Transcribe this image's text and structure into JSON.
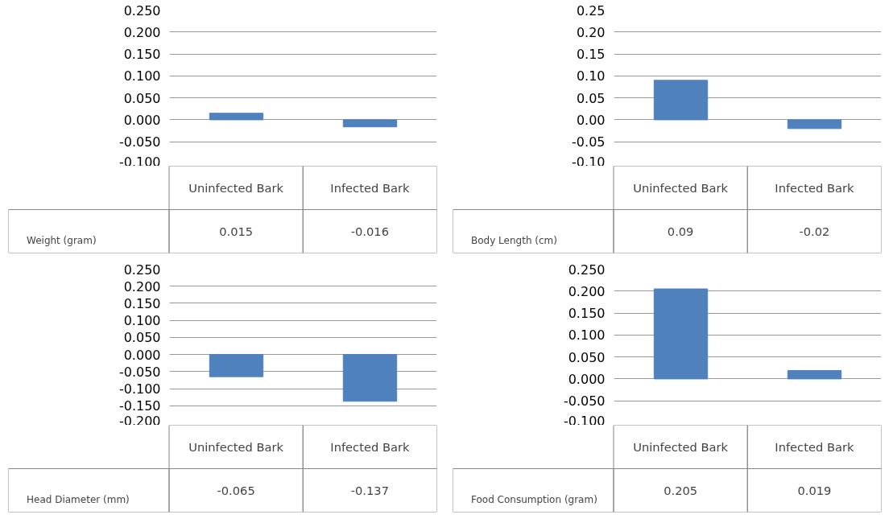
{
  "chart_data": [
    {
      "type": "bar",
      "categories": [
        "Uninfected Bark",
        "Infected Bark"
      ],
      "series": [
        {
          "name": "Weight (gram)",
          "color": "#4f81bd",
          "values": [
            0.015,
            -0.016
          ]
        }
      ],
      "ylim": [
        -0.1,
        0.25
      ],
      "yticks": [
        {
          "value": -0.1,
          "label": "-0.100"
        },
        {
          "value": -0.05,
          "label": "-0.050"
        },
        {
          "value": 0,
          "label": "0.000"
        },
        {
          "value": 0.05,
          "label": "0.050"
        },
        {
          "value": 0.1,
          "label": "0.100"
        },
        {
          "value": 0.15,
          "label": "0.150"
        },
        {
          "value": 0.2,
          "label": "0.200"
        },
        {
          "value": 0.25,
          "label": "0.250"
        }
      ],
      "grid": "y",
      "legend": "bottom left",
      "data_labels": true
    },
    {
      "type": "bar",
      "categories": [
        "Uninfected Bark",
        "Infected Bark"
      ],
      "series": [
        {
          "name": "Body Length (cm)",
          "color": "#4f81bd",
          "values": [
            0.09,
            -0.02
          ]
        }
      ],
      "ylim": [
        -0.1,
        0.25
      ],
      "yticks": [
        {
          "value": -0.1,
          "label": "-0.10"
        },
        {
          "value": -0.05,
          "label": "-0.05"
        },
        {
          "value": 0,
          "label": "0.00"
        },
        {
          "value": 0.05,
          "label": "0.05"
        },
        {
          "value": 0.1,
          "label": "0.10"
        },
        {
          "value": 0.15,
          "label": "0.15"
        },
        {
          "value": 0.2,
          "label": "0.20"
        },
        {
          "value": 0.25,
          "label": "0.25"
        }
      ],
      "grid": "y",
      "legend": "bottom left",
      "data_labels": true
    },
    {
      "type": "bar",
      "categories": [
        "Uninfected Bark",
        "Infected Bark"
      ],
      "series": [
        {
          "name": "Head Diameter (mm)",
          "color": "#4f81bd",
          "values": [
            -0.065,
            -0.137
          ]
        }
      ],
      "ylim": [
        -0.2,
        0.25
      ],
      "yticks": [
        {
          "value": -0.2,
          "label": "-0.200"
        },
        {
          "value": -0.15,
          "label": "-0.150"
        },
        {
          "value": -0.1,
          "label": "-0.100"
        },
        {
          "value": -0.05,
          "label": "-0.050"
        },
        {
          "value": 0,
          "label": "0.000"
        },
        {
          "value": 0.05,
          "label": "0.050"
        },
        {
          "value": 0.1,
          "label": "0.100"
        },
        {
          "value": 0.15,
          "label": "0.150"
        },
        {
          "value": 0.2,
          "label": "0.200"
        },
        {
          "value": 0.25,
          "label": "0.250"
        }
      ],
      "grid": "y",
      "legend": "bottom left",
      "data_labels": true
    },
    {
      "type": "bar",
      "categories": [
        "Uninfected Bark",
        "Infected Bark"
      ],
      "series": [
        {
          "name": "Food Consumption (gram)",
          "color": "#4f81bd",
          "values": [
            0.205,
            0.019
          ]
        }
      ],
      "ylim": [
        -0.1,
        0.25
      ],
      "yticks": [
        {
          "value": -0.1,
          "label": "-0.100"
        },
        {
          "value": -0.05,
          "label": "-0.050"
        },
        {
          "value": 0,
          "label": "0.000"
        },
        {
          "value": 0.05,
          "label": "0.050"
        },
        {
          "value": 0.1,
          "label": "0.100"
        },
        {
          "value": 0.15,
          "label": "0.150"
        },
        {
          "value": 0.2,
          "label": "0.200"
        },
        {
          "value": 0.25,
          "label": "0.250"
        }
      ],
      "grid": "y",
      "legend": "bottom left",
      "data_labels": true
    }
  ]
}
